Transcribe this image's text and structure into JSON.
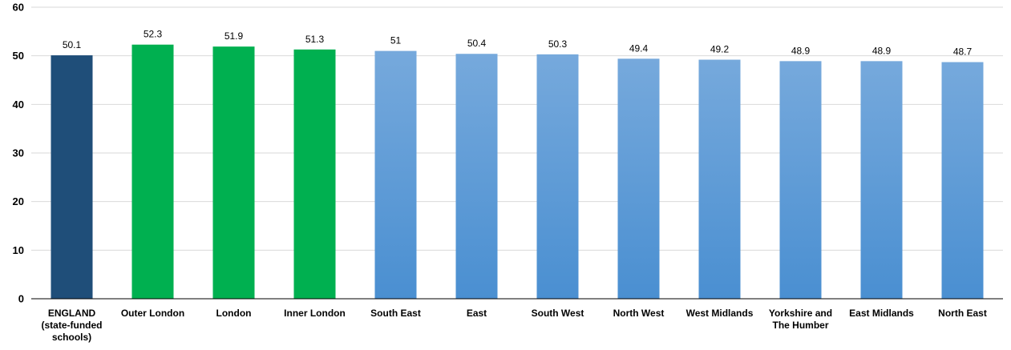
{
  "chart_data": {
    "type": "bar",
    "categories": [
      [
        "ENGLAND",
        "(state-funded",
        "schools)"
      ],
      [
        "Outer London"
      ],
      [
        "London"
      ],
      [
        "Inner London"
      ],
      [
        "South East"
      ],
      [
        "East"
      ],
      [
        "South West"
      ],
      [
        "North West"
      ],
      [
        "West Midlands"
      ],
      [
        "Yorkshire and",
        "The Humber"
      ],
      [
        "East Midlands"
      ],
      [
        "North East"
      ]
    ],
    "values": [
      50.1,
      52.3,
      51.9,
      51.3,
      51,
      50.4,
      50.3,
      49.4,
      49.2,
      48.9,
      48.9,
      48.7
    ],
    "value_labels": [
      "50.1",
      "52.3",
      "51.9",
      "51.3",
      "51",
      "50.4",
      "50.3",
      "49.4",
      "49.2",
      "48.9",
      "48.9",
      "48.7"
    ],
    "bar_color_groups": [
      "england",
      "london",
      "london",
      "london",
      "region",
      "region",
      "region",
      "region",
      "region",
      "region",
      "region",
      "region"
    ],
    "colors": {
      "england": "#1f4e79",
      "london": "#00b050",
      "region_top": "#76a9dc",
      "region_bottom": "#4a8fd1"
    },
    "ylim": [
      0,
      60
    ],
    "yticks": [
      0,
      10,
      20,
      30,
      40,
      50,
      60
    ],
    "grid": true,
    "legend": "none"
  }
}
